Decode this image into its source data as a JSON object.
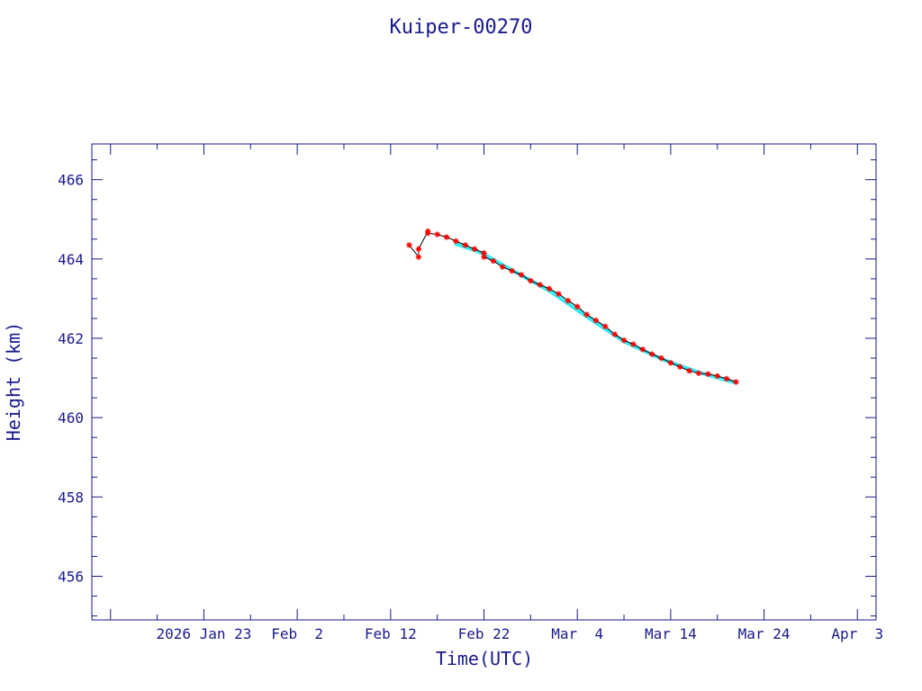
{
  "chart_data": {
    "type": "scatter",
    "title": "Kuiper-00270",
    "xlabel": "Time(UTC)",
    "ylabel": "Height (km)",
    "xlim": [
      "2026-01-11",
      "2026-04-05"
    ],
    "ylim": [
      454.9,
      466.9
    ],
    "grid": false,
    "x_ticks": [
      {
        "date": "2026-01-23",
        "label": "2026 Jan 23"
      },
      {
        "date": "2026-02-02",
        "label": "Feb  2"
      },
      {
        "date": "2026-02-12",
        "label": "Feb 12"
      },
      {
        "date": "2026-02-22",
        "label": "Feb 22"
      },
      {
        "date": "2026-03-04",
        "label": "Mar  4"
      },
      {
        "date": "2026-03-14",
        "label": "Mar 14"
      },
      {
        "date": "2026-03-24",
        "label": "Mar 24"
      },
      {
        "date": "2026-04-03",
        "label": "Apr  3"
      }
    ],
    "y_ticks": [
      456,
      458,
      460,
      462,
      464,
      466
    ],
    "colors": {
      "axis": "#1a1a8c",
      "points": "#ff0000",
      "line": "#000000",
      "fit": "#00e5ee"
    },
    "series": [
      {
        "type": "line+points",
        "points": [
          [
            "2026-02-14",
            464.35
          ],
          [
            "2026-02-15",
            464.05
          ],
          [
            "2026-02-15",
            464.25
          ],
          [
            "2026-02-16",
            464.7
          ],
          [
            "2026-02-16",
            464.65
          ],
          [
            "2026-02-17",
            464.62
          ],
          [
            "2026-02-18",
            464.55
          ],
          [
            "2026-02-19",
            464.45
          ],
          [
            "2026-02-20",
            464.35
          ],
          [
            "2026-02-21",
            464.25
          ],
          [
            "2026-02-22",
            464.15
          ],
          [
            "2026-02-22",
            464.05
          ],
          [
            "2026-02-23",
            463.95
          ],
          [
            "2026-02-24",
            463.8
          ],
          [
            "2026-02-25",
            463.7
          ],
          [
            "2026-02-26",
            463.6
          ],
          [
            "2026-02-27",
            463.45
          ],
          [
            "2026-02-28",
            463.35
          ],
          [
            "2026-03-01",
            463.25
          ],
          [
            "2026-03-02",
            463.12
          ],
          [
            "2026-03-03",
            462.95
          ],
          [
            "2026-03-04",
            462.8
          ],
          [
            "2026-03-05",
            462.6
          ],
          [
            "2026-03-06",
            462.45
          ],
          [
            "2026-03-07",
            462.3
          ],
          [
            "2026-03-08",
            462.1
          ],
          [
            "2026-03-09",
            461.95
          ],
          [
            "2026-03-10",
            461.85
          ],
          [
            "2026-03-11",
            461.72
          ],
          [
            "2026-03-12",
            461.6
          ],
          [
            "2026-03-13",
            461.5
          ],
          [
            "2026-03-14",
            461.38
          ],
          [
            "2026-03-15",
            461.28
          ],
          [
            "2026-03-16",
            461.18
          ],
          [
            "2026-03-17",
            461.12
          ],
          [
            "2026-03-18",
            461.1
          ],
          [
            "2026-03-19",
            461.05
          ],
          [
            "2026-03-20",
            460.98
          ],
          [
            "2026-03-21",
            460.9
          ]
        ]
      },
      {
        "type": "fit",
        "points": [
          [
            "2026-02-19",
            464.38
          ],
          [
            "2026-02-21",
            464.22
          ],
          [
            "2026-02-22",
            464.12
          ],
          [
            "2026-02-25",
            463.72
          ],
          [
            "2026-03-01",
            463.2
          ],
          [
            "2026-03-05",
            462.55
          ],
          [
            "2026-03-09",
            461.92
          ],
          [
            "2026-03-13",
            461.48
          ],
          [
            "2026-03-17",
            461.14
          ],
          [
            "2026-03-21",
            460.88
          ]
        ]
      }
    ]
  }
}
